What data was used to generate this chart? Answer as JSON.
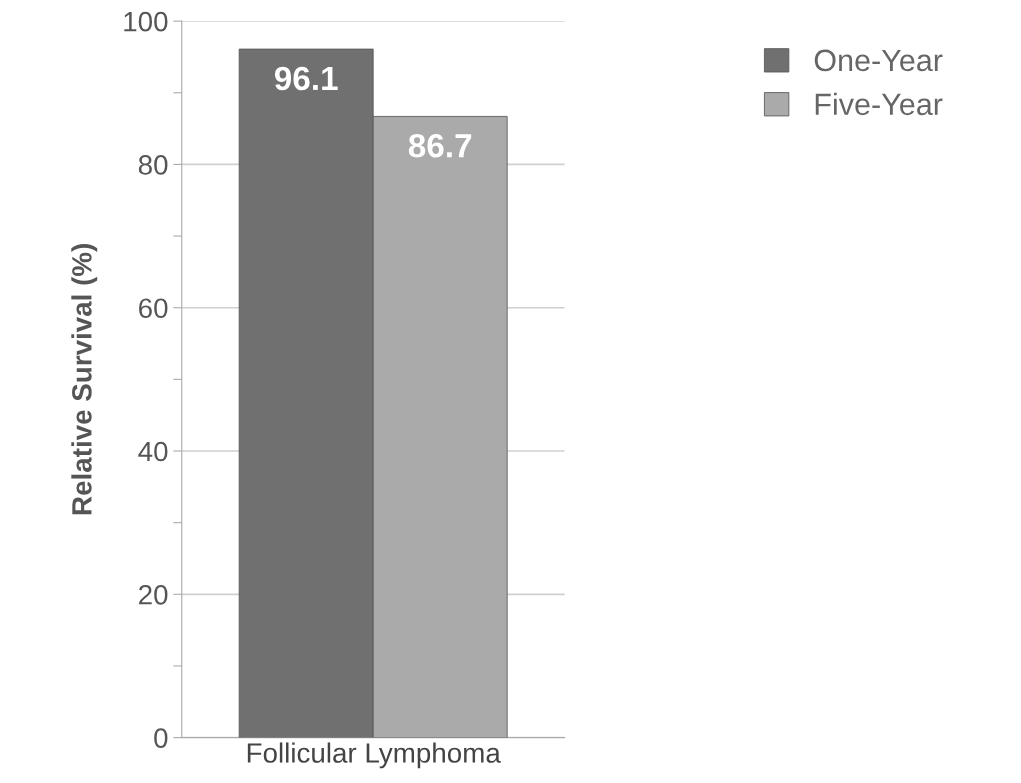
{
  "chart_data": {
    "type": "bar",
    "ylabel": "Relative Survival (%)",
    "categories": [
      "Follicular Lymphoma"
    ],
    "series": [
      {
        "name": "One-Year",
        "color": "#707070",
        "values": [
          96.1
        ]
      },
      {
        "name": "Five-Year",
        "color": "#aaaaaa",
        "values": [
          86.7
        ]
      }
    ],
    "ylim": [
      0,
      100
    ],
    "yticks": [
      0,
      {
        "value": 10,
        "label": null
      },
      20,
      {
        "value": 30,
        "label": null
      },
      40,
      {
        "value": 50,
        "label": null
      },
      60,
      {
        "value": 70,
        "label": null
      },
      80,
      {
        "value": 90,
        "label": null
      },
      100
    ],
    "grid": "y",
    "legend": "top right",
    "data_labels": true
  }
}
